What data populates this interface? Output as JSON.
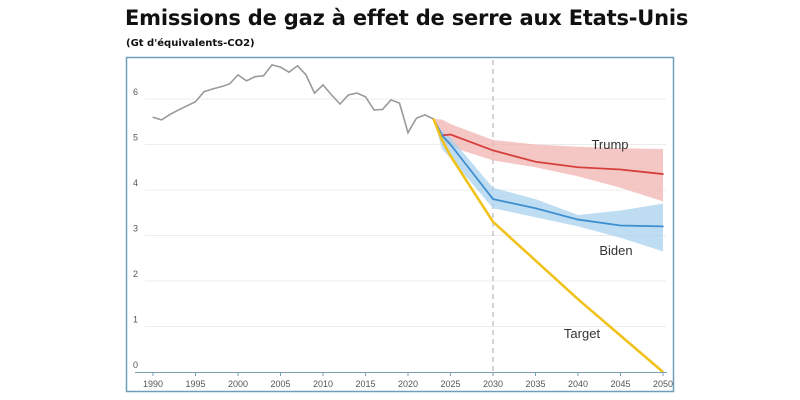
{
  "chart_data": {
    "type": "line",
    "title": "Emissions de gaz à effet de serre aux Etats-Unis",
    "subtitle": "(Gt d'équivalents-CO2)",
    "xlim": [
      1990,
      2050
    ],
    "ylim": [
      0,
      6.8
    ],
    "x_ticks": [
      1990,
      1995,
      2000,
      2005,
      2010,
      2015,
      2020,
      2025,
      2030,
      2035,
      2040,
      2045,
      2050
    ],
    "y_ticks": [
      0,
      1,
      2,
      3,
      4,
      5,
      6
    ],
    "grid": "horizontal",
    "reference_line_x": 2030,
    "colors": {
      "historical": "#9a9a9a",
      "trump": "#d6403c",
      "trump_band": "#f0b4b2",
      "biden": "#3f8fd0",
      "biden_band": "#a8d2ef",
      "target": "#f1c21b",
      "frame": "#6f9fb8"
    },
    "historical": {
      "x": [
        1990,
        1991,
        1992,
        1993,
        1994,
        1995,
        1996,
        1997,
        1998,
        1999,
        2000,
        2001,
        2002,
        2003,
        2004,
        2005,
        2006,
        2007,
        2008,
        2009,
        2010,
        2011,
        2012,
        2013,
        2014,
        2015,
        2016,
        2017,
        2018,
        2019,
        2020,
        2021,
        2022,
        2023
      ],
      "y": [
        5.6,
        5.54,
        5.66,
        5.76,
        5.85,
        5.94,
        6.16,
        6.22,
        6.27,
        6.33,
        6.53,
        6.4,
        6.49,
        6.51,
        6.75,
        6.7,
        6.59,
        6.73,
        6.53,
        6.13,
        6.31,
        6.09,
        5.89,
        6.09,
        6.13,
        6.05,
        5.76,
        5.77,
        5.98,
        5.91,
        5.26,
        5.58,
        5.65,
        5.56
      ]
    },
    "series": [
      {
        "name": "Trump",
        "x": [
          2023,
          2024,
          2025,
          2030,
          2035,
          2040,
          2045,
          2050
        ],
        "y": [
          5.56,
          5.2,
          5.22,
          4.87,
          4.62,
          4.5,
          4.45,
          4.35
        ],
        "upper": [
          5.56,
          5.55,
          5.45,
          5.1,
          5.0,
          4.95,
          4.92,
          4.9
        ],
        "lower": [
          5.56,
          5.05,
          4.95,
          4.65,
          4.5,
          4.3,
          4.05,
          3.75
        ]
      },
      {
        "name": "Biden",
        "x": [
          2023,
          2024,
          2025,
          2030,
          2035,
          2040,
          2045,
          2050
        ],
        "y": [
          5.56,
          5.2,
          5.0,
          3.8,
          3.6,
          3.35,
          3.22,
          3.2
        ],
        "upper": [
          5.56,
          5.3,
          5.15,
          4.05,
          3.8,
          3.45,
          3.55,
          3.7
        ],
        "lower": [
          5.56,
          4.9,
          4.7,
          3.6,
          3.4,
          3.2,
          2.95,
          2.65
        ]
      },
      {
        "name": "Target",
        "x": [
          2023,
          2024,
          2025,
          2030,
          2040,
          2050
        ],
        "y": [
          5.56,
          5.1,
          4.75,
          3.3,
          1.6,
          0
        ]
      }
    ]
  }
}
